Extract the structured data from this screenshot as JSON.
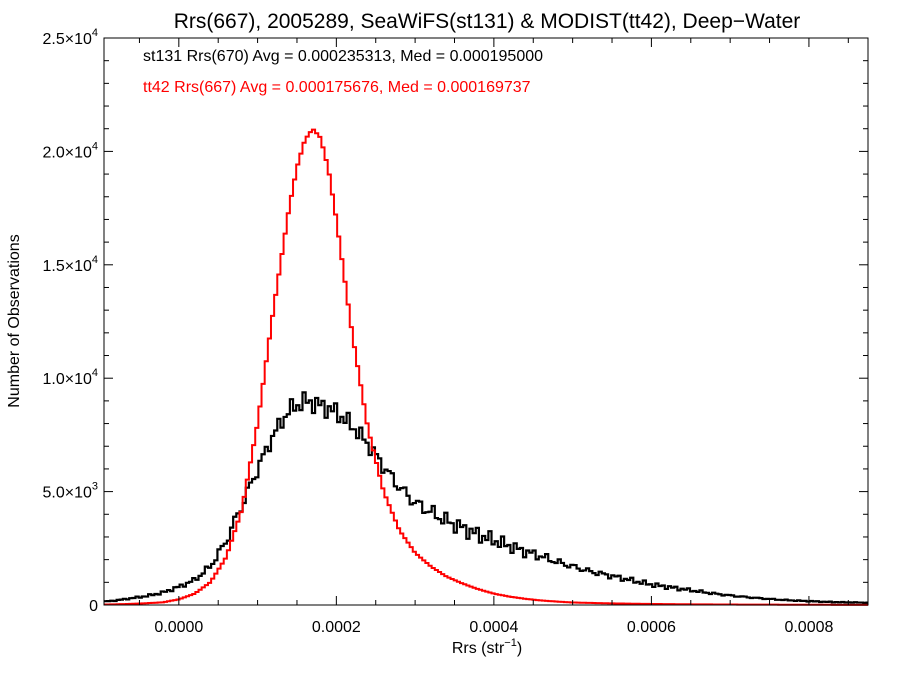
{
  "chart_data": {
    "type": "line",
    "title": "Rrs(667), 2005289, SeaWiFS(st131) & MODIST(tt42), Deep−Water",
    "xlabel": "Rrs (str",
    "xlabel_sup": "−1",
    "xlabel_tail": ")",
    "ylabel": "Number of Observations",
    "xlim": [
      -9.5e-05,
      0.000875
    ],
    "ylim": [
      0,
      25000
    ],
    "x_ticks": [
      0.0,
      0.0002,
      0.0004,
      0.0006,
      0.0008
    ],
    "x_tick_labels": [
      "0.0000",
      "0.0002",
      "0.0004",
      "0.0006",
      "0.0008"
    ],
    "y_ticks": [
      0,
      5000,
      10000,
      15000,
      20000,
      25000
    ],
    "y_tick_labels": [
      {
        "mant": "0",
        "exp": ""
      },
      {
        "mant": "5.0×10",
        "exp": "3"
      },
      {
        "mant": "1.0×10",
        "exp": "4"
      },
      {
        "mant": "1.5×10",
        "exp": "4"
      },
      {
        "mant": "2.0×10",
        "exp": "4"
      },
      {
        "mant": "2.5×10",
        "exp": "4"
      }
    ],
    "annotations": [
      {
        "text": "st131 Rrs(670) Avg = 0.000235313, Med = 0.000195000",
        "color": "#000000"
      },
      {
        "text": "tt42 Rrs(667) Avg = 0.000175676, Med = 0.000169737",
        "color": "#ff0000"
      }
    ],
    "series": [
      {
        "color": "#000000",
        "style": "step",
        "x": [
          -9.5e-05,
          -8e-05,
          -6e-05,
          -4e-05,
          -2e-05,
          0.0,
          2e-05,
          4e-05,
          6e-05,
          8e-05,
          0.0001,
          0.00012,
          0.00014,
          0.00016,
          0.00018,
          0.0002,
          0.00022,
          0.00024,
          0.00026,
          0.00028,
          0.0003,
          0.00032,
          0.00034,
          0.00036,
          0.00038,
          0.0004,
          0.00042,
          0.00044,
          0.00046,
          0.00048,
          0.0005,
          0.00052,
          0.00054,
          0.00056,
          0.00058,
          0.0006,
          0.00062,
          0.00064,
          0.00066,
          0.00068,
          0.0007,
          0.00072,
          0.00074,
          0.00076,
          0.00078,
          0.0008,
          0.00082,
          0.00084,
          0.00086,
          0.000875
        ],
        "y": [
          150,
          200,
          300,
          400,
          550,
          800,
          1100,
          1700,
          2800,
          4400,
          6000,
          7500,
          8600,
          9000,
          8800,
          8500,
          7900,
          7100,
          6100,
          5200,
          4500,
          4100,
          3700,
          3400,
          3100,
          2850,
          2600,
          2350,
          2150,
          1900,
          1700,
          1500,
          1350,
          1200,
          1050,
          900,
          800,
          700,
          600,
          500,
          420,
          350,
          290,
          240,
          200,
          170,
          140,
          120,
          110,
          100
        ],
        "jitter": 450
      },
      {
        "color": "#ff0000",
        "style": "step",
        "x": [
          -9.5e-05,
          -8e-05,
          -6e-05,
          -4e-05,
          -2e-05,
          0.0,
          2e-05,
          4e-05,
          6e-05,
          8e-05,
          0.0001,
          0.00012,
          0.00014,
          0.00015,
          0.00016,
          0.00017,
          0.00018,
          0.00019,
          0.0002,
          0.00022,
          0.00024,
          0.00026,
          0.00028,
          0.0003,
          0.00032,
          0.00034,
          0.00036,
          0.00038,
          0.0004,
          0.00042,
          0.00044,
          0.00046,
          0.00048,
          0.0005,
          0.00055,
          0.0006,
          0.00065,
          0.0007,
          0.00075,
          0.0008,
          0.000875
        ],
        "y": [
          20,
          30,
          50,
          80,
          120,
          250,
          500,
          1000,
          2100,
          4200,
          8000,
          13000,
          17500,
          19300,
          20500,
          21000,
          20600,
          19200,
          17000,
          12000,
          7800,
          5000,
          3300,
          2300,
          1700,
          1250,
          950,
          700,
          500,
          370,
          270,
          200,
          150,
          110,
          70,
          45,
          30,
          20,
          15,
          10,
          5
        ],
        "jitter": 0
      }
    ]
  }
}
